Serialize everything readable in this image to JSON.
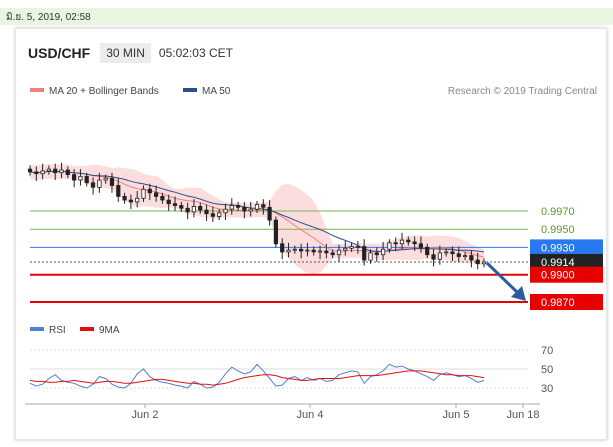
{
  "datetime": "มิ.ย. 5, 2019, 02:58",
  "header": {
    "pair": "USD/CHF",
    "timeframe": "30 MIN",
    "time": "05:02:03 CET"
  },
  "legend_top": [
    {
      "label": "MA 20 + Bollinger Bands",
      "color": "#f08080"
    },
    {
      "label": "MA 50",
      "color": "#2c4e8a"
    }
  ],
  "copyright": "Research © 2019 Trading Central",
  "legend_bottom": [
    {
      "label": "RSI",
      "color": "#4f7fd9"
    },
    {
      "label": "9MA",
      "color": "#e01010"
    }
  ],
  "chart_data": {
    "type": "candlestick",
    "y_price_range": [
      0.9855,
      1.0025
    ],
    "x_labels": [
      "Jun 2",
      "Jun 4",
      "Jun 5",
      "Jun 18"
    ],
    "levels": [
      {
        "value": 0.997,
        "label": "0.9970",
        "kind": "resistance",
        "color": "#7ab648"
      },
      {
        "value": 0.995,
        "label": "0.9950",
        "kind": "resistance",
        "color": "#7ab648"
      },
      {
        "value": 0.993,
        "label": "0.9930",
        "kind": "pivot",
        "color": "#2878f0"
      },
      {
        "value": 0.9914,
        "label": "0.9914",
        "kind": "last-price",
        "color": "#222222"
      },
      {
        "value": 0.99,
        "label": "0.9900",
        "kind": "support",
        "color": "#e60000"
      },
      {
        "value": 0.987,
        "label": "0.9870",
        "kind": "support",
        "color": "#e60000"
      }
    ],
    "closes": [
      1.0013,
      1.0011,
      1.0014,
      1.0016,
      1.0012,
      1.0015,
      1.001,
      1.0004,
      1.0008,
      1.0001,
      0.9996,
      1.0004,
      1.0006,
      0.9998,
      0.9986,
      0.9982,
      0.998,
      0.9984,
      0.9994,
      0.999,
      0.9986,
      0.9982,
      0.9978,
      0.9976,
      0.9973,
      0.9969,
      0.9975,
      0.9971,
      0.9967,
      0.9964,
      0.9968,
      0.9972,
      0.9976,
      0.9974,
      0.997,
      0.9972,
      0.9977,
      0.9974,
      0.996,
      0.9934,
      0.9925,
      0.9927,
      0.9928,
      0.9926,
      0.9927,
      0.9925,
      0.9926,
      0.9924,
      0.9922,
      0.9927,
      0.9929,
      0.9931,
      0.9931,
      0.9916,
      0.9924,
      0.9922,
      0.9928,
      0.9935,
      0.9934,
      0.9938,
      0.9936,
      0.9934,
      0.993,
      0.9922,
      0.9917,
      0.9924,
      0.9925,
      0.9923,
      0.992,
      0.9921,
      0.9916,
      0.9912,
      0.9914
    ],
    "rsi": {
      "levels": [
        70,
        50,
        30
      ],
      "values": [
        35,
        32,
        34,
        40,
        44,
        38,
        36,
        35,
        32,
        30,
        34,
        42,
        40,
        34,
        31,
        30,
        35,
        45,
        50,
        42,
        38,
        36,
        35,
        33,
        32,
        30,
        37,
        34,
        30,
        31,
        36,
        45,
        52,
        48,
        45,
        47,
        55,
        48,
        40,
        32,
        33,
        40,
        42,
        38,
        41,
        38,
        40,
        37,
        38,
        44,
        46,
        48,
        47,
        35,
        42,
        44,
        48,
        55,
        52,
        53,
        50,
        48,
        45,
        42,
        38,
        44,
        46,
        44,
        42,
        43,
        40,
        36,
        38
      ],
      "ma9": [
        38,
        37,
        37,
        36,
        36,
        37,
        37,
        38,
        37,
        36,
        35,
        36,
        37,
        37,
        36,
        35,
        35,
        36,
        37,
        38,
        39,
        39,
        38,
        37,
        36,
        35,
        35,
        34,
        34,
        33,
        34,
        35,
        37,
        39,
        41,
        42,
        43,
        44,
        44,
        43,
        41,
        40,
        39,
        38,
        38,
        39,
        40,
        40,
        40,
        40,
        41,
        42,
        43,
        43,
        43,
        43,
        44,
        45,
        46,
        47,
        48,
        48,
        48,
        47,
        46,
        45,
        44,
        44,
        43,
        43,
        43,
        42,
        41
      ]
    }
  }
}
